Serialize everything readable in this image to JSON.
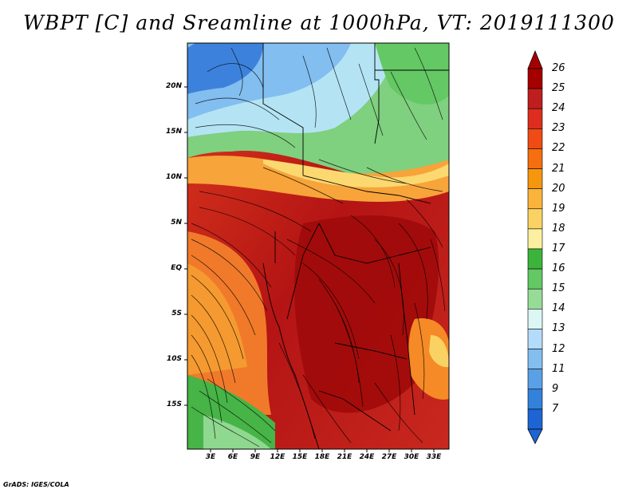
{
  "title": "WBPT [C] and Sreamline at 1000hPa, VT: 2019111300",
  "footer": "GrADS: IGES/COLA",
  "lat_ticks": [
    "20N",
    "15N",
    "10N",
    "5N",
    "EQ",
    "5S",
    "10S",
    "15S"
  ],
  "lon_ticks": [
    "3E",
    "6E",
    "9E",
    "12E",
    "15E",
    "18E",
    "21E",
    "24E",
    "27E",
    "30E",
    "33E"
  ],
  "colorbar": {
    "labels": [
      "26",
      "25",
      "24",
      "23",
      "22",
      "21",
      "20",
      "19",
      "18",
      "17",
      "16",
      "15",
      "14",
      "13",
      "12",
      "11",
      "9",
      "7"
    ],
    "colors": [
      "#a50000",
      "#be1e1e",
      "#dc2d1e",
      "#f04b14",
      "#f56e0f",
      "#f5960f",
      "#fab43c",
      "#fad264",
      "#fcf0a0",
      "#3cb43c",
      "#64c864",
      "#96dc96",
      "#dcf5f5",
      "#b4dcfa",
      "#82bef0",
      "#5aa0e6",
      "#3282dc",
      "#1e64d2"
    ]
  }
}
